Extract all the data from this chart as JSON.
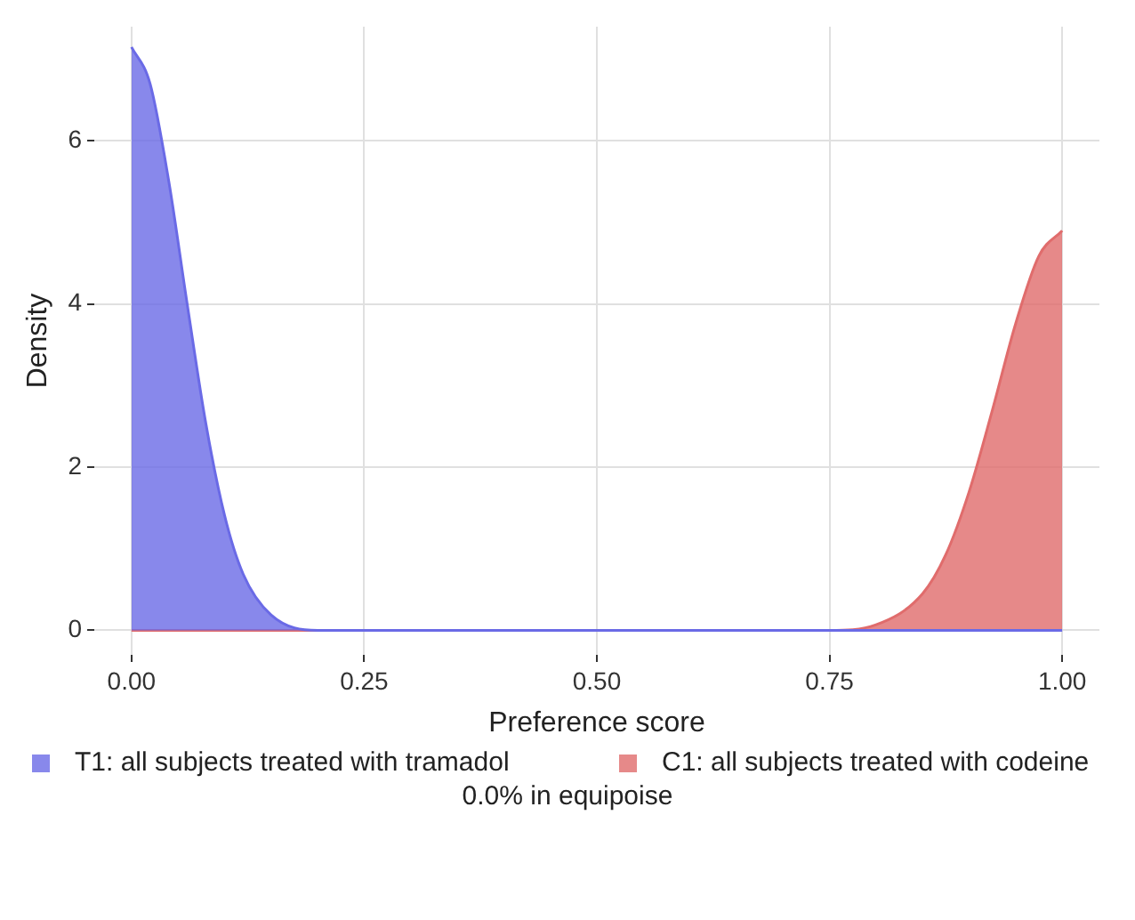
{
  "chart_data": {
    "type": "area",
    "xlabel": "Preference score",
    "ylabel": "Density",
    "xlim": [
      -0.04,
      1.04
    ],
    "xticks": [
      {
        "value": 0,
        "label": "0.00"
      },
      {
        "value": 0.25,
        "label": "0.25"
      },
      {
        "value": 0.5,
        "label": "0.50"
      },
      {
        "value": 0.75,
        "label": "0.75"
      },
      {
        "value": 1,
        "label": "1.00"
      }
    ],
    "ylim": [
      -0.3,
      7.4
    ],
    "yticks": [
      0,
      2,
      4,
      6
    ],
    "grid": true,
    "legend": "bottom",
    "series": [
      {
        "name": "T1: all subjects treated with tramadol",
        "color": "#6a6ae6",
        "x": [
          0,
          0.02,
          0.04,
          0.06,
          0.08,
          0.1,
          0.12,
          0.15,
          0.2,
          0.25,
          0.5,
          0.75,
          1
        ],
        "values": [
          7.15,
          6.7,
          5.51,
          3.99,
          2.53,
          1.41,
          0.69,
          0.19,
          0,
          0,
          0,
          0,
          0
        ]
      },
      {
        "name": "C1: all subjects treated with codeine",
        "color": "#e06c6c",
        "x": [
          0,
          0.25,
          0.5,
          0.75,
          0.8,
          0.85,
          0.875,
          0.9,
          0.925,
          0.95,
          0.975,
          1
        ],
        "values": [
          0,
          0,
          0,
          0,
          0.07,
          0.45,
          0.93,
          1.7,
          2.7,
          3.76,
          4.59,
          4.9
        ]
      }
    ],
    "annotations": [
      "0.0% in equipoise"
    ]
  }
}
